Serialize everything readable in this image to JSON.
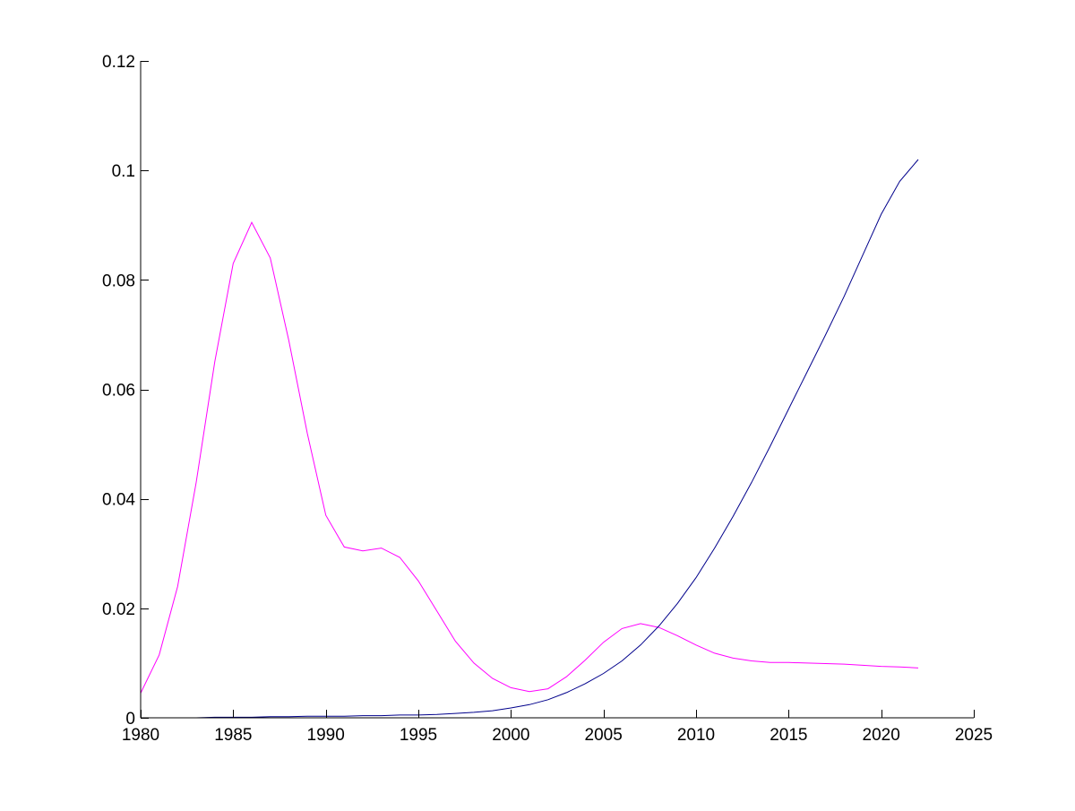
{
  "chart_data": {
    "type": "line",
    "xlim": [
      1980,
      2025
    ],
    "ylim": [
      0,
      0.12
    ],
    "xticks": [
      1980,
      1985,
      1990,
      1995,
      2000,
      2005,
      2010,
      2015,
      2020,
      2025
    ],
    "xtick_labels": [
      "1980",
      "1985",
      "1990",
      "1995",
      "2000",
      "2005",
      "2010",
      "2015",
      "2020",
      "2025"
    ],
    "yticks": [
      0,
      0.02,
      0.04,
      0.06,
      0.08,
      0.1,
      0.12
    ],
    "ytick_labels": [
      "0",
      "0.02",
      "0.04",
      "0.06",
      "0.08",
      "0.1",
      "0.12"
    ],
    "grid": false,
    "legend": false,
    "series": [
      {
        "color": "#ff00ff",
        "x": [
          1980,
          1981,
          1982,
          1983,
          1984,
          1985,
          1986,
          1987,
          1988,
          1989,
          1990,
          1991,
          1992,
          1993,
          1994,
          1995,
          1996,
          1997,
          1998,
          1999,
          2000,
          2001,
          2002,
          2003,
          2004,
          2005,
          2006,
          2007,
          2008,
          2009,
          2010,
          2011,
          2012,
          2013,
          2014,
          2015,
          2016,
          2017,
          2018,
          2019,
          2020,
          2021,
          2022
        ],
        "y": [
          0.0045,
          0.0115,
          0.024,
          0.043,
          0.065,
          0.083,
          0.0905,
          0.084,
          0.069,
          0.052,
          0.037,
          0.0312,
          0.0305,
          0.031,
          0.0293,
          0.025,
          0.0195,
          0.014,
          0.01,
          0.0072,
          0.0055,
          0.0048,
          0.0053,
          0.0075,
          0.0105,
          0.0138,
          0.0163,
          0.0172,
          0.0165,
          0.015,
          0.0133,
          0.0118,
          0.0109,
          0.0104,
          0.0101,
          0.0101,
          0.01,
          0.0099,
          0.0098,
          0.0096,
          0.0094,
          0.0093,
          0.0091
        ]
      },
      {
        "color": "#00008b",
        "x": [
          1980,
          1981,
          1982,
          1983,
          1984,
          1985,
          1986,
          1987,
          1988,
          1989,
          1990,
          1991,
          1992,
          1993,
          1994,
          1995,
          1996,
          1997,
          1998,
          1999,
          2000,
          2001,
          2002,
          2003,
          2004,
          2005,
          2006,
          2007,
          2008,
          2009,
          2010,
          2011,
          2012,
          2013,
          2014,
          2015,
          2016,
          2017,
          2018,
          2019,
          2020,
          2021,
          2022
        ],
        "y": [
          0.0,
          0.0,
          0.0,
          0.0,
          0.0001,
          0.0001,
          0.0001,
          0.0002,
          0.0002,
          0.0003,
          0.0003,
          0.0003,
          0.0004,
          0.0004,
          0.0005,
          0.0005,
          0.0006,
          0.0008,
          0.001,
          0.0013,
          0.0018,
          0.0024,
          0.0033,
          0.0046,
          0.0062,
          0.0081,
          0.0104,
          0.0133,
          0.0168,
          0.0209,
          0.0256,
          0.031,
          0.0368,
          0.043,
          0.0496,
          0.0564,
          0.0632,
          0.07,
          0.077,
          0.0845,
          0.092,
          0.098,
          0.102
        ]
      }
    ]
  }
}
